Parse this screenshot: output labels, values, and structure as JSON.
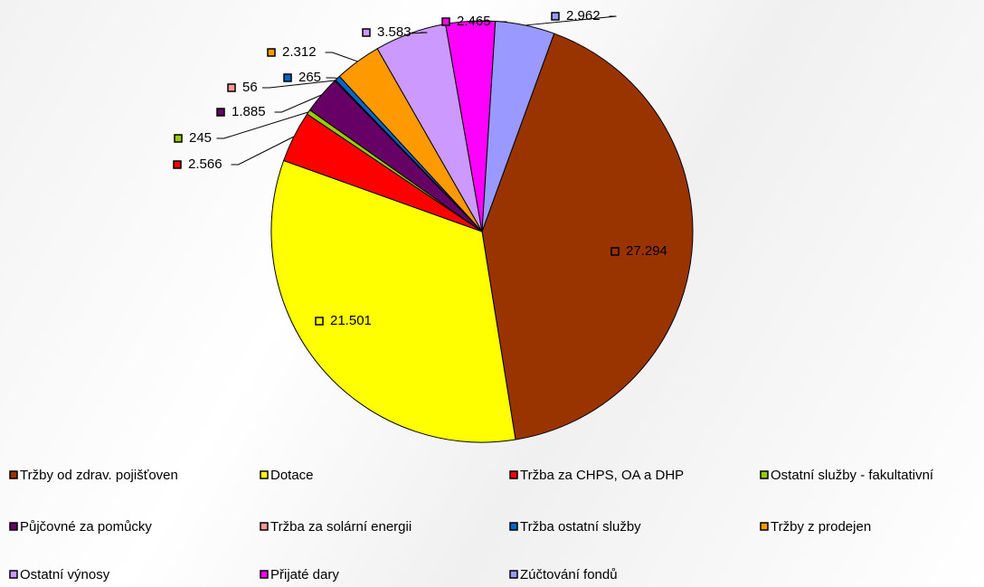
{
  "chart_data": {
    "type": "pie",
    "categories": [
      "Tržby od zdrav. pojišťoven",
      "Dotace",
      "Tržba za CHPS, OA a DHP",
      "Ostatní služby - fakultativní",
      "Půjčovné za pomůcky",
      "Tržba za solární energii",
      "Tržba ostatní služby",
      "Tržby z prodejen",
      "Ostatní výnosy",
      "Přijaté dary",
      "Zúčtování fondů"
    ],
    "values": [
      27294,
      21501,
      2566,
      245,
      1885,
      56,
      265,
      2312,
      3583,
      2465,
      2962
    ],
    "value_labels": [
      "27.294",
      "21.501",
      "2.566",
      "245",
      "1.885",
      "56",
      "265",
      "2.312",
      "3.583",
      "2.465",
      "2.962"
    ],
    "colors": [
      "#993300",
      "#ffff00",
      "#ff0000",
      "#99cc00",
      "#660066",
      "#ff9999",
      "#0066cc",
      "#ff9900",
      "#cc99ff",
      "#ff00ff",
      "#9999ff"
    ],
    "legend": "bottom"
  }
}
